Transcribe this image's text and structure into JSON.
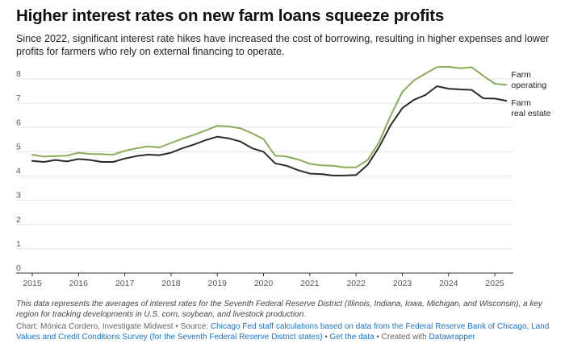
{
  "title": "Higher interest rates on new farm loans squeeze profits",
  "subtitle": "Since 2022, significant interest rate hikes have increased the cost of borrowing, resulting in higher expenses and lower profits for farmers who rely on external financing to operate.",
  "note": "This data represents the averages of interest rates for the Seventh Federal Reserve District (Illinois, Indiana, Iowa, Michigan, and Wisconsin), a key region for tracking developments in U.S. corn, soybean, and livestock production.",
  "footer": {
    "chart_credit": "Chart: Mónica Cordero, Investigate Midwest",
    "source_prefix": " • Source: ",
    "source_link": "Chicago Fed staff calculations based on data from the Federal Reserve Bank of Chicago, Land Values and Credit Conditions Survey (for the Seventh Federal Reserve District states)",
    "sep1": " • ",
    "get_data": "Get the data",
    "created_prefix": " • Created with ",
    "datawrapper": "Datawrapper"
  },
  "colors": {
    "farm_operating": "#8aac56",
    "farm_real_estate": "#2b2b2b",
    "link": "#1a73c8",
    "grid": "#e3e3e3"
  },
  "chart_data": {
    "type": "line",
    "ylim": [
      0,
      8
    ],
    "xlim": [
      2015,
      2025.4
    ],
    "y_ticks": [
      "0",
      "1",
      "2",
      "3",
      "4",
      "5",
      "6",
      "7",
      "8"
    ],
    "x_ticks": [
      "2015",
      "2016",
      "2017",
      "2018",
      "2019",
      "2020",
      "2021",
      "2022",
      "2023",
      "2024",
      "2025"
    ],
    "grid": true,
    "legend": "direct labels at line ends",
    "x": [
      2015.0,
      2015.25,
      2015.5,
      2015.75,
      2016.0,
      2016.25,
      2016.5,
      2016.75,
      2017.0,
      2017.25,
      2017.5,
      2017.75,
      2018.0,
      2018.25,
      2018.5,
      2018.75,
      2019.0,
      2019.25,
      2019.5,
      2019.75,
      2020.0,
      2020.25,
      2020.5,
      2020.75,
      2021.0,
      2021.25,
      2021.5,
      2021.75,
      2022.0,
      2022.25,
      2022.5,
      2022.75,
      2023.0,
      2023.25,
      2023.5,
      2023.75,
      2024.0,
      2024.25,
      2024.5,
      2024.75,
      2025.0,
      2025.25
    ],
    "series": [
      {
        "name": "Farm operating",
        "values": [
          4.88,
          4.8,
          4.82,
          4.84,
          4.96,
          4.91,
          4.9,
          4.88,
          5.04,
          5.14,
          5.22,
          5.18,
          5.36,
          5.54,
          5.7,
          5.88,
          6.07,
          6.04,
          5.97,
          5.76,
          5.52,
          4.84,
          4.8,
          4.68,
          4.5,
          4.44,
          4.42,
          4.36,
          4.36,
          4.66,
          5.4,
          6.5,
          7.47,
          7.94,
          8.22,
          8.49,
          8.5,
          8.44,
          8.48,
          8.13,
          7.8,
          7.76
        ]
      },
      {
        "name": "Farm real estate",
        "values": [
          4.62,
          4.58,
          4.66,
          4.6,
          4.7,
          4.66,
          4.58,
          4.58,
          4.72,
          4.82,
          4.88,
          4.86,
          4.96,
          5.15,
          5.3,
          5.48,
          5.62,
          5.55,
          5.42,
          5.15,
          5.0,
          4.52,
          4.42,
          4.24,
          4.1,
          4.08,
          4.02,
          4.02,
          4.04,
          4.46,
          5.2,
          6.1,
          6.8,
          7.14,
          7.34,
          7.7,
          7.6,
          7.57,
          7.55,
          7.2,
          7.19,
          7.1
        ]
      }
    ]
  }
}
